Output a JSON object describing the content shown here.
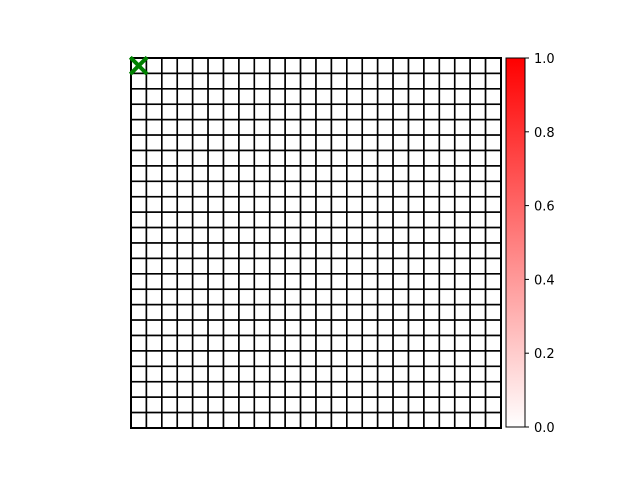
{
  "board": {
    "rows": 24,
    "cols": 24,
    "cell_fill": "#ffffff",
    "line_color": "#000000",
    "agent": {
      "row": 0,
      "col": 0,
      "icon": "x-marker-icon",
      "color": "#008000"
    }
  },
  "colorbar": {
    "min": 0.0,
    "max": 1.0,
    "color_low": "#ffffff",
    "color_high": "#ff0000",
    "ticks": [
      {
        "value": 0.0,
        "label": "0.0"
      },
      {
        "value": 0.2,
        "label": "0.2"
      },
      {
        "value": 0.4,
        "label": "0.4"
      },
      {
        "value": 0.6,
        "label": "0.6"
      },
      {
        "value": 0.8,
        "label": "0.8"
      },
      {
        "value": 1.0,
        "label": "1.0"
      }
    ]
  }
}
